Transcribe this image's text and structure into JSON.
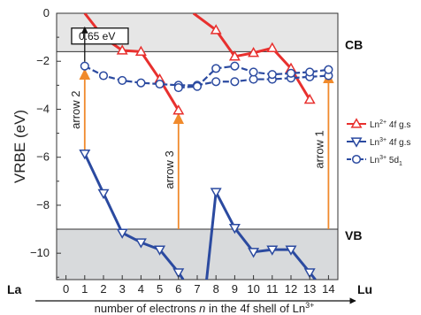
{
  "chart_data": {
    "type": "line",
    "ylabel": "VRBE (eV)",
    "xlabel_parts": {
      "pre": "number of electrons ",
      "n": "n",
      "mid": " in the 4f shell of Ln",
      "sup": "3+"
    },
    "x_ticks": [
      0,
      1,
      2,
      3,
      4,
      5,
      6,
      7,
      8,
      9,
      10,
      11,
      12,
      13,
      14
    ],
    "y_ticks": [
      0,
      -2,
      -4,
      -6,
      -8,
      -10
    ],
    "xlim": [
      -0.5,
      14.5
    ],
    "ylim": [
      -11.1,
      0
    ],
    "x_start_label": "La",
    "x_end_label": "Lu",
    "bands": [
      {
        "label": "CB",
        "y_edge": -1.6,
        "region": "above",
        "color": "#e6e6e6"
      },
      {
        "label": "VB",
        "y_edge": -9.0,
        "region": "below",
        "color": "#d8dadc"
      }
    ],
    "box_annotation": {
      "text": "0.65 eV",
      "x": 0.3,
      "y": -0.95
    },
    "series": [
      {
        "name_parts": {
          "base": "Ln",
          "sup": "2+",
          "tail": " 4f g.s"
        },
        "color": "#e8302e",
        "marker": "triangle-up",
        "segments": [
          [
            [
              1,
              0
            ],
            [
              2,
              -1.0
            ],
            [
              3,
              -1.55
            ],
            [
              4,
              -1.6
            ],
            [
              5,
              -2.75
            ],
            [
              6,
              -4.05
            ]
          ],
          [
            [
              6.8,
              0
            ],
            [
              8,
              -0.7
            ],
            [
              9,
              -1.8
            ],
            [
              10,
              -1.65
            ],
            [
              11,
              -1.45
            ],
            [
              12,
              -2.3
            ],
            [
              13,
              -3.6
            ]
          ]
        ]
      },
      {
        "name_parts": {
          "base": "Ln",
          "sup": "3+",
          "tail": " 4f g.s"
        },
        "color": "#2b4aa0",
        "marker": "triangle-down",
        "segments": [
          [
            [
              1,
              -5.85
            ],
            [
              2,
              -7.5
            ],
            [
              3,
              -9.15
            ],
            [
              4,
              -9.55
            ],
            [
              5,
              -9.85
            ],
            [
              6,
              -10.8
            ],
            [
              6.25,
              -11.1
            ]
          ],
          [
            [
              7.5,
              -11.1
            ],
            [
              8,
              -7.45
            ],
            [
              9,
              -8.95
            ],
            [
              10,
              -9.95
            ],
            [
              11,
              -9.85
            ],
            [
              12,
              -9.85
            ],
            [
              13,
              -10.8
            ],
            [
              13.3,
              -11.1
            ]
          ]
        ]
      },
      {
        "name_parts": {
          "base": "Ln",
          "sup": "3+",
          "tail": " 5d",
          "sub": "1"
        },
        "color": "#2b4aa0",
        "marker": "circle",
        "segments": [
          [
            [
              1,
              -2.2
            ],
            [
              2,
              -2.6
            ],
            [
              3,
              -2.8
            ],
            [
              4,
              -2.9
            ],
            [
              5,
              -2.95
            ],
            [
              6,
              -3.0
            ],
            [
              7,
              -3.0
            ],
            [
              8,
              -2.85
            ],
            [
              9,
              -2.85
            ],
            [
              10,
              -2.75
            ],
            [
              11,
              -2.75
            ],
            [
              12,
              -2.7
            ],
            [
              13,
              -2.65
            ],
            [
              14,
              -2.6
            ]
          ],
          [
            [
              6,
              -3.1
            ],
            [
              7,
              -3.05
            ],
            [
              8,
              -2.3
            ],
            [
              9,
              -2.2
            ],
            [
              10,
              -2.45
            ],
            [
              11,
              -2.55
            ],
            [
              12,
              -2.5
            ],
            [
              13,
              -2.45
            ],
            [
              14,
              -2.35
            ]
          ]
        ]
      }
    ],
    "arrows": [
      {
        "label": "arrow 2",
        "x": 1,
        "y_from": -5.85,
        "y_to": -2.2
      },
      {
        "label": "arrow 3",
        "x": 6,
        "y_from": -9.0,
        "y_to": -4.05
      },
      {
        "label": "arrow 1",
        "x": 14,
        "y_from": -9.0,
        "y_to": -2.35
      }
    ],
    "arrow_color": "#f08a2c"
  }
}
